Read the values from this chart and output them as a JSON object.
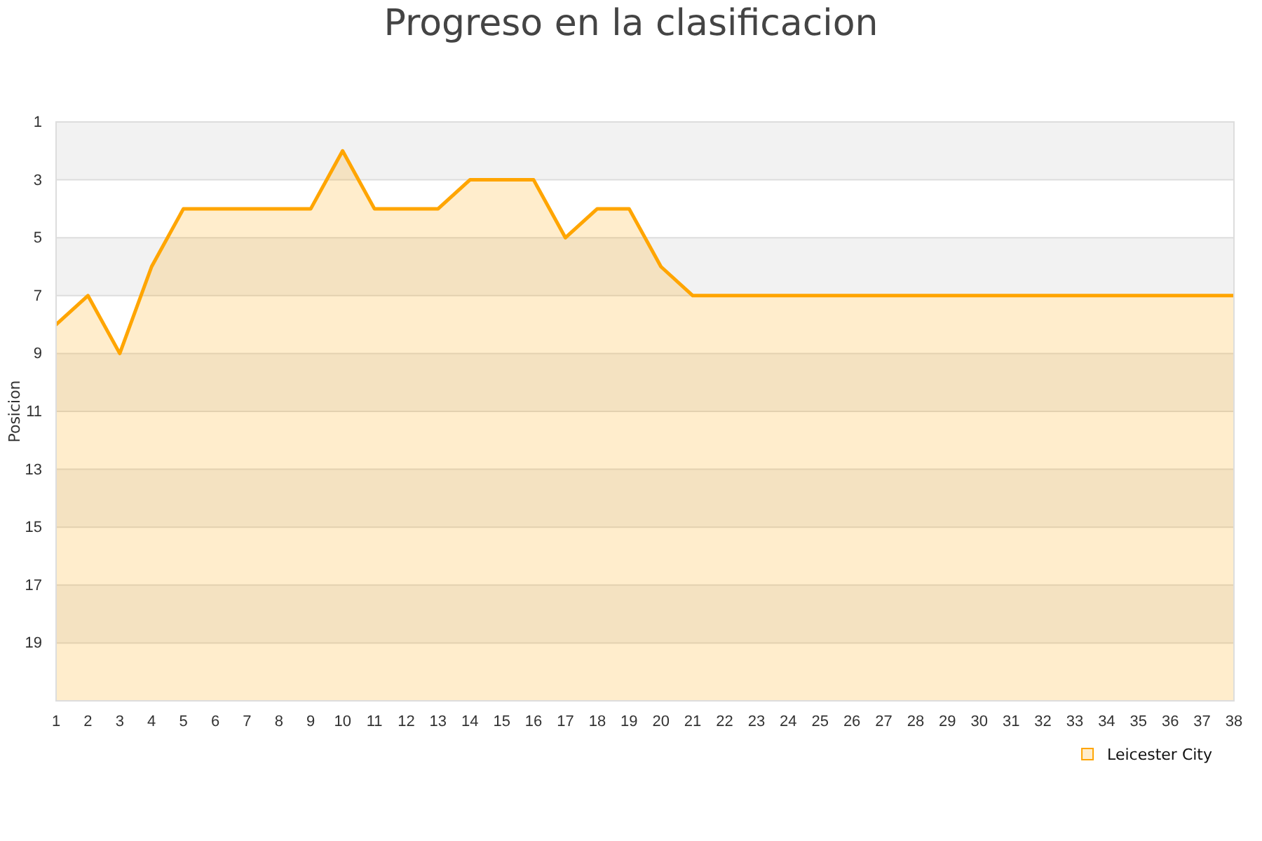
{
  "chart_data": {
    "type": "area",
    "title": "Progreso en la clasificacion",
    "ylabel": "Posicion",
    "x": [
      1,
      2,
      3,
      4,
      5,
      6,
      7,
      8,
      9,
      10,
      11,
      12,
      13,
      14,
      15,
      16,
      17,
      18,
      19,
      20,
      21,
      22,
      23,
      24,
      25,
      26,
      27,
      28,
      29,
      30,
      31,
      32,
      33,
      34,
      35,
      36,
      37,
      38
    ],
    "series": [
      {
        "name": "Leicester City",
        "color": "#ffa500",
        "values": [
          8,
          7,
          9,
          6,
          4,
          4,
          4,
          4,
          4,
          2,
          4,
          4,
          4,
          3,
          3,
          3,
          5,
          4,
          4,
          6,
          7,
          7,
          7,
          7,
          7,
          7,
          7,
          7,
          7,
          7,
          7,
          7,
          7,
          7,
          7,
          7,
          7,
          7
        ]
      }
    ],
    "xlim": [
      1,
      38
    ],
    "xticks": [
      1,
      2,
      3,
      4,
      5,
      6,
      7,
      8,
      9,
      10,
      11,
      12,
      13,
      14,
      15,
      16,
      17,
      18,
      19,
      20,
      21,
      22,
      23,
      24,
      25,
      26,
      27,
      28,
      29,
      30,
      31,
      32,
      33,
      34,
      35,
      36,
      37,
      38
    ],
    "ylim": [
      21,
      1
    ],
    "yticks": [
      1,
      3,
      5,
      7,
      9,
      11,
      13,
      15,
      17,
      19
    ],
    "bands": [
      {
        "axis": "y",
        "from": 1,
        "to": 3,
        "color": "#f2f2f2"
      },
      {
        "axis": "y",
        "from": 5,
        "to": 7,
        "color": "#f2f2f2"
      },
      {
        "axis": "y",
        "from": 9,
        "to": 11,
        "color": "#f2f2f2"
      },
      {
        "axis": "y",
        "from": 13,
        "to": 15,
        "color": "#f2f2f2"
      },
      {
        "axis": "y",
        "from": 17,
        "to": 19,
        "color": "#f2f2f2"
      }
    ],
    "grid": "y",
    "legend": "bottom right",
    "marker": "none",
    "line_style": "solid"
  }
}
